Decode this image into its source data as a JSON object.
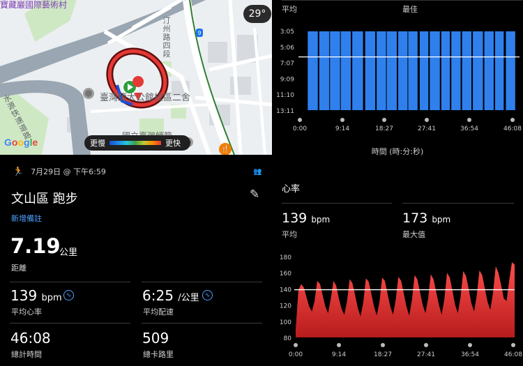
{
  "map": {
    "top_label": "寶藏巖國際藝術村",
    "temperature": "29°",
    "route_number": "9",
    "road_label": "汀州路四段",
    "road_label_2": "水源快速道路",
    "place_name": "臺灣師大公館校區二舍",
    "place_name_2": "國立臺灣師範",
    "google": "Google",
    "legend_slow": "更慢",
    "legend_fast": "更快",
    "colors": {
      "route_red": "#e53935",
      "route_dark": "#5d1010",
      "park": "#cfe8c4",
      "road": "#ffffff",
      "highway": "#9aa6b2",
      "rail": "#2e7d32"
    }
  },
  "activity": {
    "date": "7月29日 @ 下午6:59",
    "title": "文山區 跑步",
    "add_note": "新增備註",
    "distance": {
      "value": "7.19",
      "unit": "公里",
      "label": "距離"
    },
    "stats": [
      {
        "value": "139",
        "unit": "bpm",
        "label": "平均心率"
      },
      {
        "value": "6:25",
        "unit": "/公里",
        "label": "平均配速"
      },
      {
        "value": "46:08",
        "unit": "",
        "label": "總計時間"
      },
      {
        "value": "509",
        "unit": "",
        "label": "總卡路里"
      }
    ]
  },
  "pace": {
    "avg_label": "平均",
    "best_label": "最佳",
    "x_title": "時間 (時:分:秒)",
    "color": "#2f80ed"
  },
  "heart": {
    "title": "心率",
    "avg": {
      "value": "139",
      "unit": "bpm",
      "label": "平均"
    },
    "max": {
      "value": "173",
      "unit": "bpm",
      "label": "最大值"
    },
    "color": "#e53935"
  },
  "chart_data": [
    {
      "type": "bar",
      "title": "",
      "ylabel": "",
      "xlabel": "時間 (時:分:秒)",
      "y_ticks": [
        "3:05",
        "5:06",
        "7:07",
        "9:09",
        "11:10",
        "13:11"
      ],
      "y_inverted": true,
      "x_ticks": [
        "0:00",
        "9:14",
        "18:27",
        "27:41",
        "36:54",
        "46:08"
      ],
      "average_line": "6:25",
      "bars": [
        {
          "start": 0.55,
          "end": 1.25,
          "pace": "3:10"
        },
        {
          "start": 1.35,
          "end": 2.05,
          "pace": "3:10"
        },
        {
          "start": 2.1,
          "end": 2.8,
          "pace": "3:10"
        },
        {
          "start": 2.85,
          "end": 3.55,
          "pace": "3:10"
        },
        {
          "start": 3.65,
          "end": 4.4,
          "pace": "3:10"
        },
        {
          "start": 4.55,
          "end": 5.25,
          "pace": "3:10"
        },
        {
          "start": 5.35,
          "end": 6.0,
          "pace": "3:10"
        },
        {
          "start": 6.05,
          "end": 6.75,
          "pace": "3:10"
        },
        {
          "start": 6.85,
          "end": 7.5,
          "pace": "3:10"
        },
        {
          "start": 7.55,
          "end": 8.2,
          "pace": "3:10"
        },
        {
          "start": 8.35,
          "end": 8.95,
          "pace": "3:10"
        },
        {
          "start": 9.05,
          "end": 9.75,
          "pace": "3:10"
        },
        {
          "start": 9.85,
          "end": 10.45,
          "pace": "3:10"
        },
        {
          "start": 10.55,
          "end": 11.2,
          "pace": "3:10"
        },
        {
          "start": 11.3,
          "end": 11.95,
          "pace": "3:10"
        },
        {
          "start": 12.05,
          "end": 12.75,
          "pace": "3:10"
        },
        {
          "start": 12.85,
          "end": 13.5,
          "pace": "3:10"
        },
        {
          "start": 13.6,
          "end": 14.2,
          "pace": "3:10"
        },
        {
          "start": 14.35,
          "end": 15.0,
          "pace": "3:10"
        }
      ]
    },
    {
      "type": "area",
      "title": "心率",
      "y_ticks": [
        80,
        100,
        120,
        140,
        160,
        180
      ],
      "ylim": [
        80,
        180
      ],
      "x_ticks": [
        "0:00",
        "9:14",
        "18:27",
        "27:41",
        "36:54",
        "46:08"
      ],
      "average_line": 139,
      "values": [
        90,
        138,
        146,
        142,
        130,
        118,
        112,
        125,
        150,
        146,
        132,
        118,
        110,
        128,
        150,
        144,
        128,
        115,
        108,
        125,
        152,
        147,
        132,
        116,
        106,
        123,
        153,
        149,
        134,
        118,
        107,
        124,
        154,
        150,
        134,
        118,
        108,
        126,
        155,
        150,
        134,
        118,
        107,
        126,
        157,
        152,
        136,
        120,
        110,
        128,
        158,
        152,
        136,
        120,
        108,
        127,
        160,
        154,
        138,
        120,
        110,
        130,
        162,
        156,
        140,
        122,
        112,
        132,
        163,
        157,
        140,
        124,
        114,
        135,
        168,
        160,
        145,
        128,
        125,
        150,
        173,
        170
      ]
    }
  ]
}
